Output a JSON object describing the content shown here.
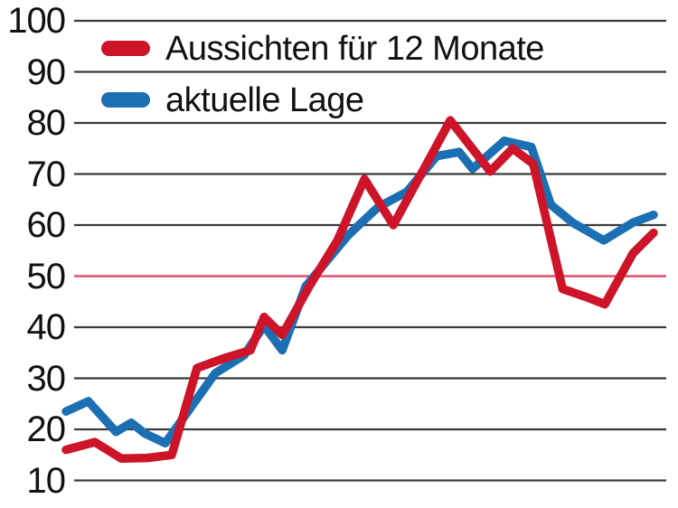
{
  "page": {
    "background": "#ffffff"
  },
  "chart_data": {
    "type": "line",
    "title": "",
    "grid": true,
    "legend_position": "top-left",
    "colors": {
      "outlook_line": "#cd1429",
      "current_line": "#1d6fb4",
      "gridline": "#3a3a3a",
      "reference_line": "#e0506a",
      "text": "#111111",
      "background": "#ffffff"
    },
    "y_axis": {
      "min": 10,
      "max": 100,
      "tick_step": 10,
      "ticks": [
        "100",
        "90",
        "80",
        "70",
        "60",
        "50",
        "40",
        "30",
        "20",
        "10"
      ],
      "reference_value": 50
    },
    "legend": [
      {
        "label": "Aussichten für 12 Monate",
        "color": "#cd1429"
      },
      {
        "label": "aktuelle Lage",
        "color": "#1d6fb4"
      }
    ],
    "series": [
      {
        "id": "outlook",
        "name": "Aussichten für 12 Monate",
        "color": "#cd1429",
        "points": [
          [
            0.0,
            16.0
          ],
          [
            0.049,
            17.5
          ],
          [
            0.094,
            14.3
          ],
          [
            0.138,
            14.4
          ],
          [
            0.18,
            15.0
          ],
          [
            0.223,
            32.0
          ],
          [
            0.271,
            34.0
          ],
          [
            0.314,
            35.5
          ],
          [
            0.337,
            42.0
          ],
          [
            0.368,
            38.5
          ],
          [
            0.414,
            48.0
          ],
          [
            0.462,
            57.0
          ],
          [
            0.508,
            69.0
          ],
          [
            0.557,
            60.0
          ],
          [
            0.654,
            80.5
          ],
          [
            0.722,
            70.5
          ],
          [
            0.76,
            75.0
          ],
          [
            0.795,
            72.0
          ],
          [
            0.845,
            47.5
          ],
          [
            0.883,
            46.0
          ],
          [
            0.917,
            44.5
          ],
          [
            0.965,
            54.5
          ],
          [
            1.0,
            58.5
          ]
        ]
      },
      {
        "id": "current",
        "name": "aktuelle Lage",
        "color": "#1d6fb4",
        "points": [
          [
            0.0,
            23.5
          ],
          [
            0.038,
            25.5
          ],
          [
            0.085,
            19.5
          ],
          [
            0.111,
            21.3
          ],
          [
            0.134,
            19.2
          ],
          [
            0.169,
            17.3
          ],
          [
            0.254,
            31.0
          ],
          [
            0.303,
            34.5
          ],
          [
            0.337,
            40.3
          ],
          [
            0.368,
            35.5
          ],
          [
            0.408,
            48.0
          ],
          [
            0.48,
            58.0
          ],
          [
            0.531,
            63.5
          ],
          [
            0.58,
            66.5
          ],
          [
            0.631,
            73.5
          ],
          [
            0.669,
            74.3
          ],
          [
            0.692,
            71.0
          ],
          [
            0.746,
            76.5
          ],
          [
            0.792,
            75.3
          ],
          [
            0.825,
            64.0
          ],
          [
            0.862,
            60.5
          ],
          [
            0.915,
            57.0
          ],
          [
            0.965,
            60.5
          ],
          [
            1.0,
            62.0
          ]
        ]
      }
    ]
  }
}
